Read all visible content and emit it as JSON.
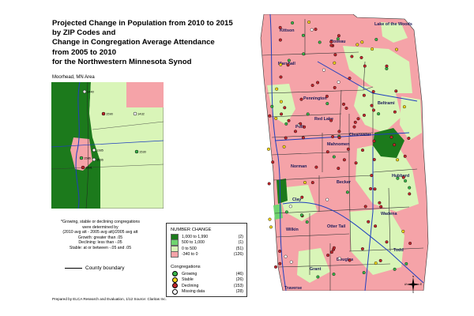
{
  "title": {
    "line1": "Projected Change in Population from 2010 to 2015",
    "line2": "by ZIP Codes and",
    "line3": "Change in Congregation Average Attendance",
    "line4": "from 2005 to 2010",
    "line5": "for the Northwestern Minnesota Synod"
  },
  "inset": {
    "label": "Moorhead, MN Area",
    "points": [
      {
        "id": "1440",
        "status": "missing"
      },
      {
        "id": "1590",
        "status": "declining"
      },
      {
        "id": "1432",
        "status": "missing"
      },
      {
        "id": "1385",
        "status": "missing"
      },
      {
        "id": "1586",
        "status": "growing"
      },
      {
        "id": "1566",
        "status": "missing"
      },
      {
        "id": "1530",
        "status": "growing"
      },
      {
        "id": "1591",
        "status": "declining"
      }
    ]
  },
  "note": {
    "line1": "*Growing, stable or declining congregations",
    "line2": "were determined by",
    "line3": "(2010 avg att - 2005 avg att)/2005 avg att",
    "line4": "Growth:  greater than .05",
    "line5": "Declining:  less than -.05",
    "line6": "Stable:  at or between -.05 and .05"
  },
  "county_key": {
    "label": "County boundary"
  },
  "legend": {
    "number_change_title": "NUMBER CHANGE",
    "number_change": [
      {
        "label": "1,000 to 1,990",
        "count": "(2)",
        "color": "#1c7a1c"
      },
      {
        "label": "500 to 1,000",
        "count": "(1)",
        "color": "#6fd36f"
      },
      {
        "label": "0 to   500",
        "count": "(51)",
        "color": "#d9f5b8"
      },
      {
        "label": "-340 to     0",
        "count": "(126)",
        "color": "#f5a3a8"
      }
    ],
    "congregations_title": "Congregations",
    "congregations": [
      {
        "label": "Growing",
        "count": "(46)",
        "color": "#39b54a"
      },
      {
        "label": "Stable",
        "count": "(26)",
        "color": "#f2d419"
      },
      {
        "label": "Declining",
        "count": "(153)",
        "color": "#c1272d"
      },
      {
        "label": "Missing data",
        "count": "(28)",
        "color": "#ffffff"
      }
    ]
  },
  "counties": [
    "Kittson",
    "Lake of the Woods",
    "Roseau",
    "Marshall",
    "Pennington",
    "Beltrami",
    "Red Lake",
    "Polk",
    "Clearwater",
    "Mahnomen",
    "Norman",
    "Hubbard",
    "Becker",
    "Clay",
    "Wadena",
    "Otter Tail",
    "Wilkin",
    "Todd",
    "Douglas",
    "Grant",
    "Traverse"
  ],
  "compass": {
    "n": "N",
    "s": "S",
    "e": "E",
    "w": "W"
  },
  "footer": "Prepared by ELCA Research and Evaluation, 1/12  Source: Claritas Inc."
}
